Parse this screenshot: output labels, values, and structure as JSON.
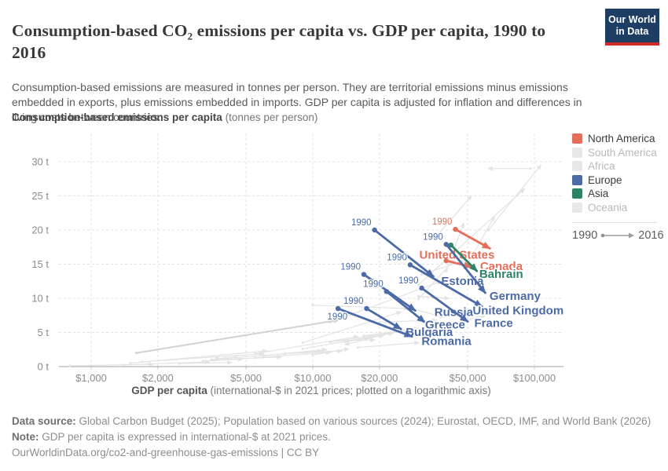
{
  "header": {
    "title": "Consumption-based CO₂ emissions per capita vs. GDP per capita, 1990 to 2016",
    "subtitle": "Consumption-based emissions are measured in tonnes per person. They are territorial emissions minus emissions embedded in exports, plus emissions embedded in imports. GDP per capita is adjusted for inflation and differences in living costs between countries.",
    "logo": {
      "line1": "Our World",
      "line2": "in Data"
    }
  },
  "colors": {
    "north_america": "#e56e5a",
    "europe": "#4c6ba6",
    "asia": "#2c8465",
    "faded_swatch": "#e8e8e8",
    "grid": "#e0e0e0",
    "axis": "#b3b3b3",
    "tick_text": "#8c8c8c",
    "bg_arrow": "#e3e3e3",
    "bg_arrow_bold": "#d2d2d2",
    "logo_navy": "#1d3d63",
    "logo_red": "#cc2929"
  },
  "legend": {
    "items": [
      {
        "label": "North America",
        "color": "#e56e5a",
        "active": true
      },
      {
        "label": "South America",
        "color": "#e8e8e8",
        "active": false
      },
      {
        "label": "Africa",
        "color": "#e8e8e8",
        "active": false
      },
      {
        "label": "Europe",
        "color": "#4c6ba6",
        "active": true
      },
      {
        "label": "Asia",
        "color": "#2c8465",
        "active": true
      },
      {
        "label": "Oceania",
        "color": "#e8e8e8",
        "active": false
      }
    ],
    "year_start": "1990",
    "year_end": "2016"
  },
  "chart_data": {
    "type": "scatter",
    "title": "Consumption-based CO₂ emissions per capita vs. GDP per capita, 1990 to 2016",
    "x_axis": {
      "title_bold": "GDP per capita",
      "title_note": "(international-$ in 2021 prices; plotted on a logarithmic axis)",
      "scale": "log",
      "ticks": [
        1000,
        2000,
        5000,
        10000,
        20000,
        50000,
        100000
      ],
      "tick_labels": [
        "$1,000",
        "$2,000",
        "$5,000",
        "$10,000",
        "$20,000",
        "$50,000",
        "$100,000"
      ],
      "range": [
        700,
        115000
      ]
    },
    "y_axis": {
      "title_bold": "Consumption-based emissions per capita",
      "title_note": "(tonnes per person)",
      "scale": "linear",
      "ticks": [
        0,
        5,
        10,
        15,
        20,
        25,
        30
      ],
      "tick_labels": [
        "0 t",
        "5 t",
        "10 t",
        "15 t",
        "20 t",
        "25 t",
        "30 t"
      ],
      "range": [
        0,
        34
      ]
    },
    "years": {
      "start": "1990",
      "end": "2016"
    },
    "tail_year_label": "1990",
    "countries": [
      {
        "name": "United States",
        "region": "North America",
        "color": "#e56e5a",
        "gdp_1990": 44000,
        "emissions_1990": 20.1,
        "gdp_2016": 63000,
        "emissions_2016": 17.3,
        "show_tail_label": true,
        "tail_label_side": "nw",
        "name_offset": [
          -42,
          8
        ]
      },
      {
        "name": "Canada",
        "region": "North America",
        "color": "#e56e5a",
        "gdp_1990": 40000,
        "emissions_1990": 15.5,
        "gdp_2016": 52000,
        "emissions_2016": 14.6,
        "show_tail_label": false,
        "tail_label_side": "nw",
        "name_offset": [
          38,
          -1
        ]
      },
      {
        "name": "Bahrain",
        "region": "Asia",
        "color": "#2c8465",
        "gdp_1990": 42000,
        "emissions_1990": 17.8,
        "gdp_2016": 55000,
        "emissions_2016": 14.0,
        "show_tail_label": false,
        "tail_label_side": "nw",
        "name_offset": [
          31,
          4
        ]
      },
      {
        "name": "Estonia",
        "region": "Europe",
        "color": "#4c6ba6",
        "gdp_1990": 19000,
        "emissions_1990": 20.0,
        "gdp_2016": 35000,
        "emissions_2016": 13.2,
        "show_tail_label": true,
        "tail_label_side": "nw",
        "name_offset": [
          37,
          6
        ]
      },
      {
        "name": "Germany",
        "region": "Europe",
        "color": "#4c6ba6",
        "gdp_1990": 40000,
        "emissions_1990": 17.9,
        "gdp_2016": 60000,
        "emissions_2016": 10.8,
        "show_tail_label": true,
        "tail_label_side": "nw",
        "name_offset": [
          38,
          4
        ]
      },
      {
        "name": "United Kingdom",
        "region": "Europe",
        "color": "#4c6ba6",
        "gdp_1990": 27500,
        "emissions_1990": 14.9,
        "gdp_2016": 58000,
        "emissions_2016": 8.8,
        "show_tail_label": true,
        "tail_label_side": "nw",
        "name_offset": [
          46,
          5
        ]
      },
      {
        "name": "Russia",
        "region": "Europe",
        "color": "#4c6ba6",
        "gdp_1990": 17000,
        "emissions_1990": 13.5,
        "gdp_2016": 29000,
        "emissions_2016": 8.2,
        "show_tail_label": true,
        "tail_label_side": "nw",
        "name_offset": [
          49,
          2
        ]
      },
      {
        "name": "France",
        "region": "Europe",
        "color": "#4c6ba6",
        "gdp_1990": 31000,
        "emissions_1990": 11.5,
        "gdp_2016": 50000,
        "emissions_2016": 6.6,
        "show_tail_label": true,
        "tail_label_side": "nw",
        "name_offset": [
          33,
          2
        ]
      },
      {
        "name": "Greece",
        "region": "Europe",
        "color": "#4c6ba6",
        "gdp_1990": 21500,
        "emissions_1990": 11.0,
        "gdp_2016": 32000,
        "emissions_2016": 6.5,
        "show_tail_label": true,
        "tail_label_side": "nw",
        "name_offset": [
          26,
          3
        ]
      },
      {
        "name": "Bulgaria",
        "region": "Europe",
        "color": "#4c6ba6",
        "gdp_1990": 17500,
        "emissions_1990": 8.5,
        "gdp_2016": 25000,
        "emissions_2016": 5.5,
        "show_tail_label": true,
        "tail_label_side": "nw",
        "name_offset": [
          36,
          4
        ]
      },
      {
        "name": "Romania",
        "region": "Europe",
        "color": "#4c6ba6",
        "gdp_1990": 13000,
        "emissions_1990": 8.5,
        "gdp_2016": 28000,
        "emissions_2016": 4.4,
        "show_tail_label": true,
        "tail_label_side": "sw",
        "name_offset": [
          44,
          6
        ]
      }
    ],
    "background_arrows": [
      [
        30000,
        12,
        90000,
        26,
        0
      ],
      [
        96000,
        29,
        62000,
        29,
        0
      ],
      [
        62000,
        20,
        107000,
        29.5,
        0
      ],
      [
        36000,
        19,
        52000,
        25,
        0
      ],
      [
        50000,
        15,
        66000,
        22,
        0
      ],
      [
        40000,
        14,
        48000,
        21,
        0
      ],
      [
        30000,
        10.3,
        41000,
        10.0,
        0
      ],
      [
        12000,
        6.5,
        38000,
        12.5,
        0
      ],
      [
        31000,
        13.5,
        48000,
        15.5,
        0
      ],
      [
        30000,
        9.9,
        44000,
        15.8,
        0
      ],
      [
        10000,
        9,
        27000,
        8.5,
        0
      ],
      [
        20000,
        6.5,
        36000,
        6.8,
        0
      ],
      [
        28000,
        8.5,
        39000,
        7.2,
        0
      ],
      [
        17000,
        4.5,
        30000,
        5.6,
        0
      ],
      [
        9000,
        3.5,
        25000,
        8,
        0
      ],
      [
        1600,
        2.0,
        13000,
        6.8,
        1
      ],
      [
        1700,
        0.7,
        6000,
        1.9,
        0
      ],
      [
        4000,
        1.2,
        11000,
        2.3,
        0
      ],
      [
        10000,
        1.7,
        14500,
        2.6,
        0
      ],
      [
        13000,
        3.8,
        19000,
        3.9,
        0
      ],
      [
        12000,
        3.6,
        27000,
        5.3,
        0
      ],
      [
        5500,
        1.9,
        16000,
        4.4,
        0
      ],
      [
        1500,
        0.5,
        6200,
        2.3,
        0
      ],
      [
        6000,
        1.6,
        11500,
        2.5,
        0
      ],
      [
        14000,
        3.6,
        21000,
        4.6,
        0
      ],
      [
        9000,
        2.6,
        23000,
        4.9,
        0
      ],
      [
        7500,
        1.9,
        13500,
        2.3,
        0
      ],
      [
        5500,
        1.3,
        12000,
        2.1,
        0
      ],
      [
        3500,
        1.0,
        7200,
        1.4,
        0
      ],
      [
        3200,
        0.8,
        4800,
        1.1,
        0
      ],
      [
        1400,
        0.25,
        3400,
        0.7,
        0
      ],
      [
        800,
        0.12,
        1900,
        0.35,
        0
      ],
      [
        2500,
        0.45,
        4300,
        0.6,
        0
      ],
      [
        20000,
        4.5,
        14000,
        3.2,
        0
      ],
      [
        4500,
        1.4,
        3600,
        1.1,
        0
      ],
      [
        45000,
        6.5,
        60000,
        7.5,
        0
      ],
      [
        16000,
        2.8,
        30000,
        3.5,
        0
      ]
    ]
  },
  "footer": {
    "data_source_label": "Data source:",
    "data_source": "Global Carbon Budget (2025); Population based on various sources (2024); Eurostat, OECD, IMF, and World Bank (2026)",
    "note_label": "Note:",
    "note": "GDP per capita is expressed in international-$ at 2021 prices.",
    "link": "OurWorldinData.org/co2-and-greenhouse-gas-emissions | CC BY"
  }
}
